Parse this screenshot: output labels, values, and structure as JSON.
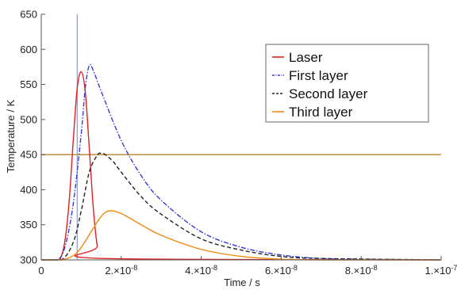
{
  "chart_data": {
    "type": "line",
    "xlabel": "Time / s",
    "ylabel": "Temperature / K",
    "xlim": [
      0,
      1e-07
    ],
    "ylim": [
      300,
      650
    ],
    "x_ticks": [
      {
        "value": 0,
        "label": "0",
        "mantissa": "",
        "exponent": ""
      },
      {
        "value": 2e-08,
        "label": "",
        "mantissa": "2.",
        "exponent": "-8"
      },
      {
        "value": 4e-08,
        "label": "",
        "mantissa": "4.",
        "exponent": "-8"
      },
      {
        "value": 6e-08,
        "label": "",
        "mantissa": "6.",
        "exponent": "-8"
      },
      {
        "value": 8e-08,
        "label": "",
        "mantissa": "8.",
        "exponent": "-8"
      },
      {
        "value": 1e-07,
        "label": "",
        "mantissa": "1.",
        "exponent": "-7"
      }
    ],
    "x_tick_times": "×10",
    "y_ticks": [
      300,
      350,
      400,
      450,
      500,
      550,
      600,
      650
    ],
    "horizontal_line": {
      "y": 450,
      "color": "#c8964a"
    },
    "vertical_line": {
      "x": 9e-09,
      "color": "#8ea6e8"
    },
    "legend_position": "top-right",
    "series": [
      {
        "name": "Laser",
        "color": "#e02020",
        "dash": "solid",
        "x": [
          0,
          4e-09,
          5e-09,
          6e-09,
          7e-09,
          8e-09,
          9e-09,
          1e-08,
          1.1e-08,
          1.2e-08,
          1.3e-08,
          1.4e-08,
          1.5e-08,
          1e-07
        ],
        "y": [
          300,
          300,
          305,
          330,
          385,
          470,
          545,
          568,
          540,
          460,
          375,
          320,
          302,
          300
        ]
      },
      {
        "name": "First layer",
        "color": "#3a3adc",
        "dash": "dashdot",
        "x": [
          0,
          4e-09,
          6e-09,
          8e-09,
          1e-08,
          1.1e-08,
          1.2e-08,
          1.3e-08,
          1.5e-08,
          2e-08,
          2.5e-08,
          3e-08,
          4e-08,
          5e-08,
          6e-08,
          7e-08,
          8e-08,
          1e-07
        ],
        "y": [
          300,
          300,
          320,
          380,
          480,
          545,
          577,
          570,
          540,
          470,
          420,
          385,
          340,
          318,
          307,
          302,
          301,
          300
        ]
      },
      {
        "name": "Second layer",
        "color": "#222222",
        "dash": "dashed",
        "x": [
          0,
          5e-09,
          8e-09,
          1e-08,
          1.2e-08,
          1.4e-08,
          1.5e-08,
          1.6e-08,
          1.8e-08,
          2e-08,
          2.5e-08,
          3e-08,
          4e-08,
          5e-08,
          6e-08,
          7e-08,
          1e-07
        ],
        "y": [
          300,
          300,
          325,
          370,
          425,
          449,
          452,
          450,
          440,
          425,
          390,
          365,
          330,
          314,
          305,
          302,
          300
        ]
      },
      {
        "name": "Third layer",
        "color": "#f08a10",
        "dash": "solid",
        "x": [
          0,
          5e-09,
          8e-09,
          1e-08,
          1.3e-08,
          1.5e-08,
          1.7e-08,
          2e-08,
          2.5e-08,
          3e-08,
          4e-08,
          5e-08,
          6e-08,
          7e-08,
          1e-07
        ],
        "y": [
          300,
          300,
          306,
          318,
          345,
          362,
          370,
          366,
          350,
          335,
          315,
          305,
          301,
          300,
          300
        ]
      }
    ]
  }
}
